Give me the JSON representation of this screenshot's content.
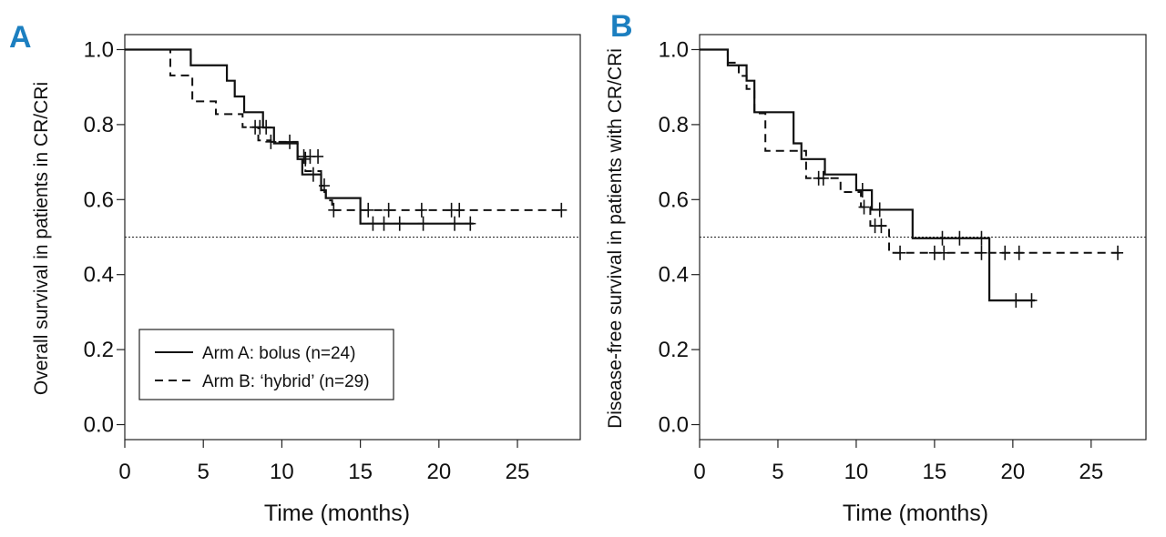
{
  "chart_data": [
    {
      "type": "line",
      "panel_label": "A",
      "xlabel": "Time (months)",
      "ylabel": "Overall survival in patients in CR/CRi",
      "xlim": [
        0,
        29
      ],
      "ylim": [
        -0.04,
        1.04
      ],
      "xticks": [
        0,
        5,
        10,
        15,
        20,
        25
      ],
      "yticks": [
        0.0,
        0.2,
        0.4,
        0.6,
        0.8,
        1.0
      ],
      "ytick_labels": [
        "0.0",
        "0.2",
        "0.4",
        "0.6",
        "0.8",
        "1.0"
      ],
      "reference_line_y": 0.5,
      "legend": {
        "position": "bottom-left",
        "entries": [
          {
            "label": "Arm A: bolus (n=24)",
            "style": "solid"
          },
          {
            "label": "Arm B: ‘hybrid’ (n=29)",
            "style": "dashed"
          }
        ]
      },
      "series": [
        {
          "name": "Arm A: bolus (n=24)",
          "style": "solid",
          "steps": [
            [
              0,
              1.0
            ],
            [
              4.2,
              0.958
            ],
            [
              6.5,
              0.917
            ],
            [
              7.0,
              0.875
            ],
            [
              7.6,
              0.833
            ],
            [
              8.8,
              0.792
            ],
            [
              9.5,
              0.75
            ],
            [
              11.0,
              0.708
            ],
            [
              11.3,
              0.667
            ],
            [
              12.5,
              0.625
            ],
            [
              12.8,
              0.604
            ],
            [
              15.0,
              0.536
            ],
            [
              22.2,
              0.536
            ]
          ],
          "censored": [
            [
              11.5,
              0.708
            ],
            [
              12.0,
              0.667
            ],
            [
              15.8,
              0.536
            ],
            [
              16.5,
              0.536
            ],
            [
              17.5,
              0.536
            ],
            [
              19.0,
              0.536
            ],
            [
              21.0,
              0.536
            ],
            [
              22.0,
              0.536
            ]
          ]
        },
        {
          "name": "Arm B: ‘hybrid’ (n=29)",
          "style": "dashed",
          "steps": [
            [
              0,
              1.0
            ],
            [
              2.9,
              0.931
            ],
            [
              4.3,
              0.862
            ],
            [
              5.8,
              0.828
            ],
            [
              7.5,
              0.793
            ],
            [
              8.5,
              0.758
            ],
            [
              9.3,
              0.754
            ],
            [
              11.0,
              0.715
            ],
            [
              11.5,
              0.676
            ],
            [
              12.5,
              0.637
            ],
            [
              12.8,
              0.598
            ],
            [
              13.2,
              0.572
            ],
            [
              27.8,
              0.572
            ]
          ],
          "censored": [
            [
              8.3,
              0.793
            ],
            [
              8.6,
              0.793
            ],
            [
              9.0,
              0.793
            ],
            [
              9.3,
              0.754
            ],
            [
              10.5,
              0.754
            ],
            [
              11.4,
              0.715
            ],
            [
              11.8,
              0.715
            ],
            [
              12.3,
              0.715
            ],
            [
              12.7,
              0.637
            ],
            [
              13.3,
              0.572
            ],
            [
              15.5,
              0.572
            ],
            [
              16.8,
              0.572
            ],
            [
              18.9,
              0.572
            ],
            [
              20.8,
              0.572
            ],
            [
              21.3,
              0.572
            ],
            [
              27.8,
              0.572
            ]
          ]
        }
      ]
    },
    {
      "type": "line",
      "panel_label": "B",
      "xlabel": "Time (months)",
      "ylabel": "Disease-free survival in patients with CR/CRi",
      "xlim": [
        0,
        28.5
      ],
      "ylim": [
        -0.04,
        1.04
      ],
      "xticks": [
        0,
        5,
        10,
        15,
        20,
        25
      ],
      "yticks": [
        0.0,
        0.2,
        0.4,
        0.6,
        0.8,
        1.0
      ],
      "ytick_labels": [
        "0.0",
        "0.2",
        "0.4",
        "0.6",
        "0.8",
        "1.0"
      ],
      "reference_line_y": 0.5,
      "series": [
        {
          "name": "Arm A: bolus (n=24)",
          "style": "solid",
          "steps": [
            [
              0,
              1.0
            ],
            [
              1.8,
              0.958
            ],
            [
              3.0,
              0.917
            ],
            [
              3.5,
              0.833
            ],
            [
              6.0,
              0.75
            ],
            [
              6.5,
              0.708
            ],
            [
              8.0,
              0.667
            ],
            [
              10.0,
              0.625
            ],
            [
              10.5,
              0.625
            ],
            [
              11.0,
              0.573
            ],
            [
              13.6,
              0.497
            ],
            [
              18.5,
              0.331
            ],
            [
              21.4,
              0.331
            ]
          ],
          "censored": [
            [
              10.4,
              0.625
            ],
            [
              11.5,
              0.573
            ],
            [
              15.5,
              0.497
            ],
            [
              16.6,
              0.497
            ],
            [
              18.0,
              0.497
            ],
            [
              20.2,
              0.331
            ],
            [
              21.2,
              0.331
            ]
          ]
        },
        {
          "name": "Arm B: ‘hybrid’ (n=29)",
          "style": "dashed",
          "steps": [
            [
              0,
              1.0
            ],
            [
              1.8,
              0.965
            ],
            [
              2.5,
              0.93
            ],
            [
              3.0,
              0.895
            ],
            [
              3.5,
              0.83
            ],
            [
              4.2,
              0.73
            ],
            [
              6.8,
              0.657
            ],
            [
              9.0,
              0.62
            ],
            [
              10.3,
              0.58
            ],
            [
              10.9,
              0.53
            ],
            [
              12.1,
              0.458
            ],
            [
              26.8,
              0.458
            ]
          ],
          "censored": [
            [
              7.6,
              0.657
            ],
            [
              7.9,
              0.657
            ],
            [
              10.5,
              0.58
            ],
            [
              11.2,
              0.53
            ],
            [
              11.6,
              0.53
            ],
            [
              12.8,
              0.458
            ],
            [
              15.0,
              0.458
            ],
            [
              15.6,
              0.458
            ],
            [
              18.0,
              0.458
            ],
            [
              19.5,
              0.458
            ],
            [
              20.4,
              0.458
            ],
            [
              26.7,
              0.458
            ]
          ]
        }
      ]
    }
  ]
}
